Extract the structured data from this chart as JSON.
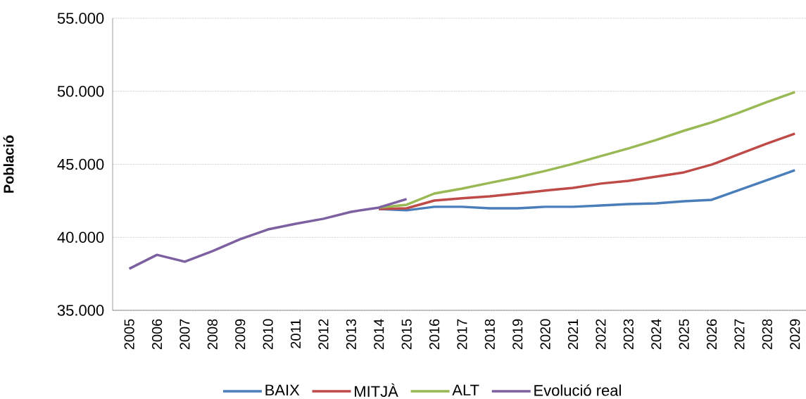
{
  "chart_data": {
    "type": "line",
    "ylabel": "Població",
    "categories": [
      "2005",
      "2006",
      "2007",
      "2008",
      "2009",
      "2010",
      "2011",
      "2012",
      "2013",
      "2014",
      "2015",
      "2016",
      "2017",
      "2018",
      "2019",
      "2020",
      "2021",
      "2022",
      "2023",
      "2024",
      "2025",
      "2026",
      "2027",
      "2028",
      "2029"
    ],
    "series": [
      {
        "name": "BAIX",
        "color": "#4a7ebb",
        "values": [
          null,
          null,
          null,
          null,
          null,
          null,
          null,
          null,
          null,
          41940,
          41850,
          42090,
          42090,
          41990,
          41990,
          42090,
          42090,
          42180,
          42280,
          42330,
          42470,
          42570,
          43250,
          43920,
          44600
        ]
      },
      {
        "name": "MITJÀ",
        "color": "#be4b48",
        "values": [
          null,
          null,
          null,
          null,
          null,
          null,
          null,
          null,
          null,
          41940,
          41990,
          42520,
          42670,
          42810,
          43000,
          43200,
          43390,
          43680,
          43870,
          44160,
          44450,
          44980,
          45700,
          46430,
          47100
        ]
      },
      {
        "name": "ALT",
        "color": "#98b954",
        "values": [
          null,
          null,
          null,
          null,
          null,
          null,
          null,
          null,
          null,
          42040,
          42230,
          43000,
          43340,
          43730,
          44110,
          44550,
          45030,
          45560,
          46090,
          46670,
          47300,
          47870,
          48550,
          49270,
          49950
        ]
      },
      {
        "name": "Evolució real",
        "color": "#7d60a0",
        "values": [
          37850,
          38800,
          38330,
          39050,
          39870,
          40540,
          40930,
          41270,
          41750,
          42040,
          42620,
          null,
          null,
          null,
          null,
          null,
          null,
          null,
          null,
          null,
          null,
          null,
          null,
          null,
          null
        ]
      }
    ],
    "ylim": [
      35000,
      55000
    ],
    "yticks": [
      {
        "value": 35000,
        "label": "35.000"
      },
      {
        "value": 40000,
        "label": "40.000"
      },
      {
        "value": 45000,
        "label": "45.000"
      },
      {
        "value": 50000,
        "label": "50.000"
      },
      {
        "value": 55000,
        "label": "55.000"
      }
    ],
    "grid": "y",
    "legend": "bottom",
    "marker": "none",
    "line_style": "solid"
  }
}
